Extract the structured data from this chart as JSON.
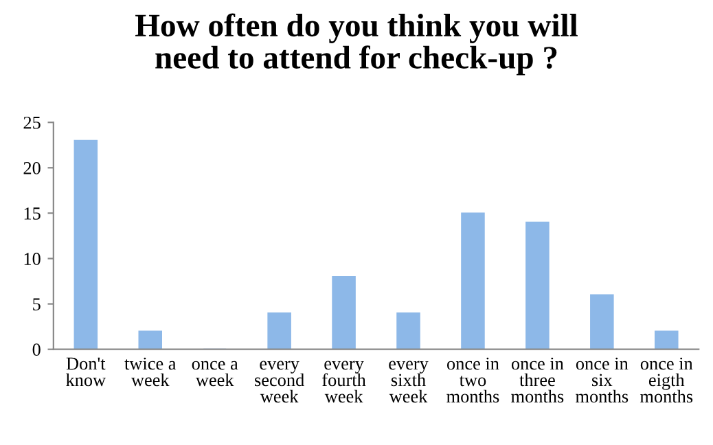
{
  "chart_data": {
    "type": "bar",
    "title": "How often do you think you will\nneed to attend for check-up ?",
    "categories": [
      "Don't\nknow",
      "twice a\nweek",
      "once a\nweek",
      "every\nsecond\nweek",
      "every\nfourth\nweek",
      "every\nsixth\nweek",
      "once in\ntwo\nmonths",
      "once in\nthree\nmonths",
      "once in\nsix\nmonths",
      "once in\neigth\nmonths"
    ],
    "values": [
      23,
      2,
      0,
      4,
      8,
      4,
      15,
      14,
      6,
      2
    ],
    "color": "#8db8e8",
    "ylim": [
      0,
      25
    ],
    "yticks": [
      0,
      5,
      10,
      15,
      20,
      25
    ],
    "grid": false,
    "legend": false
  }
}
